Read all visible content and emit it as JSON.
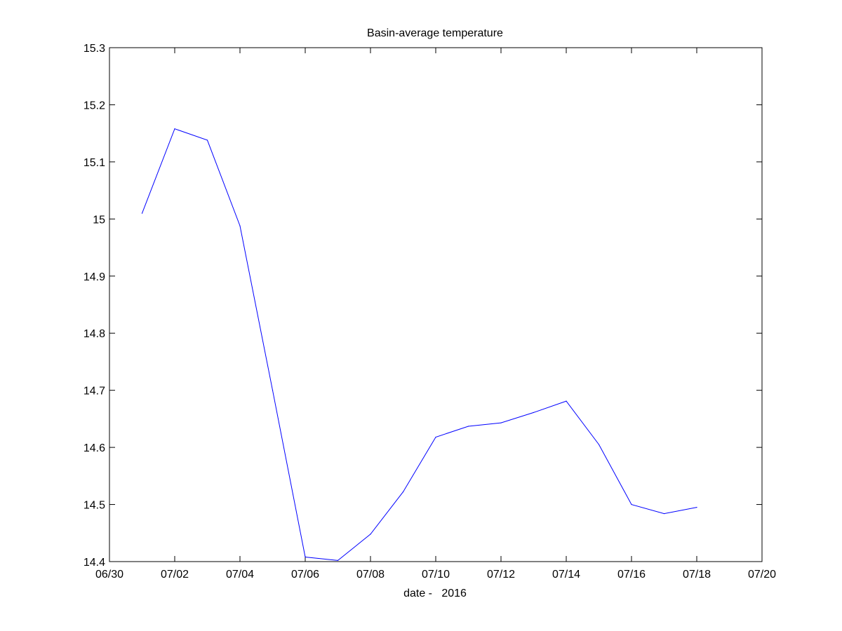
{
  "chart_data": {
    "type": "line",
    "title": "Basin-average temperature",
    "xlabel": "date -   2016",
    "ylabel": "",
    "x_tick_labels": [
      "06/30",
      "07/02",
      "07/04",
      "07/06",
      "07/08",
      "07/10",
      "07/12",
      "07/14",
      "07/16",
      "07/18",
      "07/20"
    ],
    "y_tick_labels": [
      "14.4",
      "14.5",
      "14.6",
      "14.7",
      "14.8",
      "14.9",
      "15",
      "15.1",
      "15.2",
      "15.3"
    ],
    "x_range": [
      "2016-06-30",
      "2016-07-20"
    ],
    "ylim": [
      14.4,
      15.3
    ],
    "grid": false,
    "series": [
      {
        "color": "#0000ff",
        "x": [
          "2016-07-01",
          "2016-07-02",
          "2016-07-03",
          "2016-07-04",
          "2016-07-05",
          "2016-07-06",
          "2016-07-07",
          "2016-07-08",
          "2016-07-09",
          "2016-07-10",
          "2016-07-11",
          "2016-07-12",
          "2016-07-13",
          "2016-07-14",
          "2016-07-15",
          "2016-07-16",
          "2016-07-17",
          "2016-07-18"
        ],
        "values": [
          15.01,
          15.158,
          15.138,
          14.988,
          14.7,
          14.408,
          14.402,
          14.448,
          14.522,
          14.618,
          14.637,
          14.643,
          14.661,
          14.681,
          14.605,
          14.5,
          14.484,
          14.495
        ]
      }
    ]
  }
}
